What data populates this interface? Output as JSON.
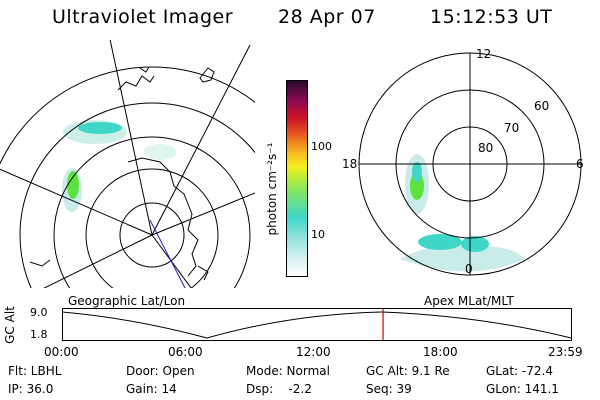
{
  "header": {
    "title": "Ultraviolet Imager",
    "date": "28 Apr 07",
    "time": "15:12:53 UT"
  },
  "colorbar": {
    "unit_label": "photon cm⁻²s⁻¹",
    "ticks": [
      "100",
      "10"
    ]
  },
  "left_panel": {
    "caption": "Geographic Lat/Lon"
  },
  "right_panel": {
    "caption": "Apex MLat/MLT",
    "mlt_labels": [
      "12",
      "18",
      "6",
      "0"
    ],
    "lat_labels": [
      "60",
      "70",
      "80"
    ]
  },
  "altitude_plot": {
    "ylabel": "GC Alt",
    "yticks": [
      "9.0",
      "1.8"
    ],
    "xticks": [
      "00:00",
      "06:00",
      "12:00",
      "18:00",
      "23:59"
    ],
    "current_time_fraction": 0.63
  },
  "footer": {
    "filter": "Flt: LBHL",
    "ip": "IP: 36.0",
    "door": "Door: Open",
    "gain": "Gain: 14",
    "mode": "Mode: Normal",
    "dsp": "Dsp:    -2.2",
    "gc_alt": "GC Alt: 9.1 Re",
    "seq": "Seq: 39",
    "glat": "GLat: -72.4",
    "glon": "GLon: 141.1"
  },
  "colors": {
    "aurora_cyan": "#3fd6c8",
    "aurora_green": "#5be23f",
    "time_marker": "#d00000"
  }
}
